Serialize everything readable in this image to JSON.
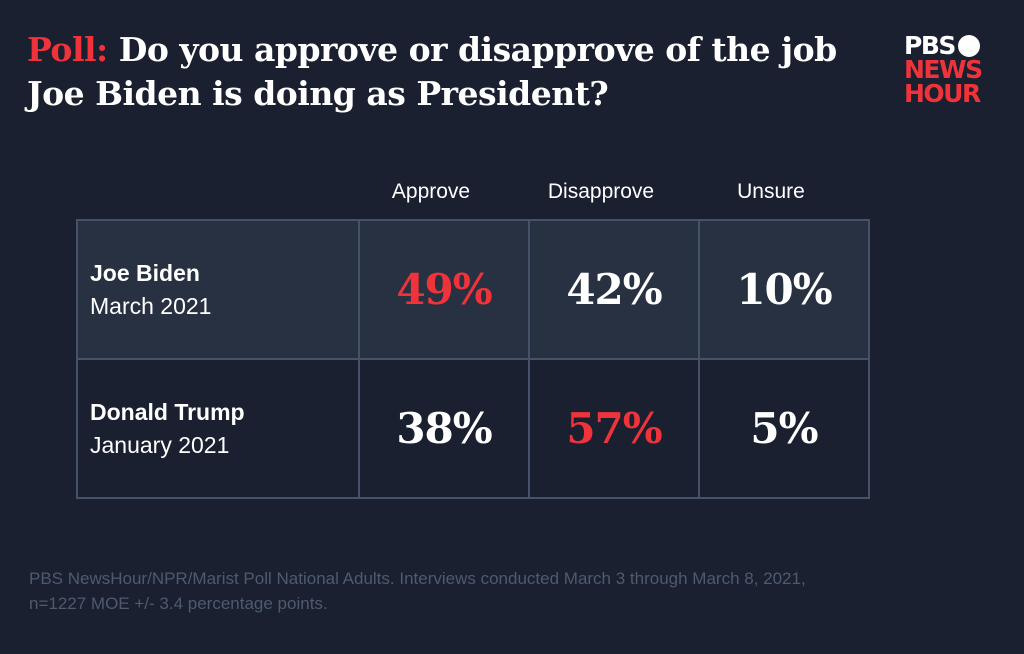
{
  "title": {
    "lead": "Poll:",
    "text": "Do you approve or disapprove of the job Joe Biden is doing as President?"
  },
  "logo": {
    "line1": "PBS",
    "line2": "NEWS",
    "line3": "HOUR"
  },
  "colors": {
    "background": "#1a2030",
    "highlight": "#f0333a",
    "row_shade": "#283142",
    "border": "#46526a"
  },
  "chart_data": {
    "type": "table",
    "columns": [
      "Approve",
      "Disapprove",
      "Unsure"
    ],
    "rows": [
      {
        "name": "Joe Biden",
        "date": "March 2021",
        "values": [
          "49%",
          "42%",
          "10%"
        ],
        "highlight": 0
      },
      {
        "name": "Donald Trump",
        "date": "January 2021",
        "values": [
          "38%",
          "57%",
          "5%"
        ],
        "highlight": 1
      }
    ]
  },
  "footnote": "PBS NewsHour/NPR/Marist Poll National Adults. Interviews conducted March 3 through March 8, 2021, n=1227 MOE +/- 3.4 percentage points."
}
